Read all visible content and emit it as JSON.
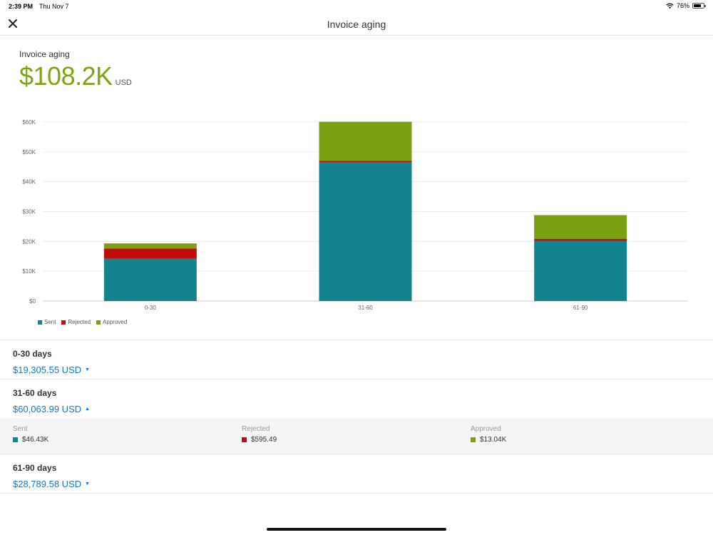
{
  "status_bar": {
    "time": "2:39 PM",
    "date": "Thu Nov 7",
    "battery": "76%",
    "battery_level": 0.76
  },
  "nav": {
    "title": "Invoice aging",
    "close_icon": "close-icon"
  },
  "summary": {
    "label": "Invoice aging",
    "amount": "$108.2K",
    "currency": "USD"
  },
  "colors": {
    "sent": "#12838f",
    "rejected": "#c30c0c",
    "approved": "#7ba112",
    "link": "#1877c9",
    "accent": "#7fa514"
  },
  "chart_data": {
    "type": "bar",
    "stacked": true,
    "categories": [
      "0-30",
      "31-60",
      "61-90"
    ],
    "series": [
      {
        "name": "Sent",
        "values": [
          14200,
          46430,
          20100
        ]
      },
      {
        "name": "Rejected",
        "values": [
          3400,
          595.49,
          700
        ]
      },
      {
        "name": "Approved",
        "values": [
          1705.55,
          13040,
          7989.58
        ]
      }
    ],
    "ylim": [
      0,
      60000
    ],
    "yticks": [
      "$0",
      "$10K",
      "$20K",
      "$30K",
      "$40K",
      "$50K",
      "$60K"
    ],
    "legend_position": "bottom-left",
    "grid": true
  },
  "groups": [
    {
      "title": "0-30 days",
      "total": "$19,305.55 USD",
      "caret": "▼",
      "expanded": false
    },
    {
      "title": "31-60 days",
      "total": "$60,063.99 USD",
      "caret": "▲",
      "expanded": true,
      "details": [
        {
          "label": "Sent",
          "value": "$46.43K"
        },
        {
          "label": "Rejected",
          "value": "$595.49"
        },
        {
          "label": "Approved",
          "value": "$13.04K"
        }
      ]
    },
    {
      "title": "61-90 days",
      "total": "$28,789.58 USD",
      "caret": "▼",
      "expanded": false
    }
  ]
}
